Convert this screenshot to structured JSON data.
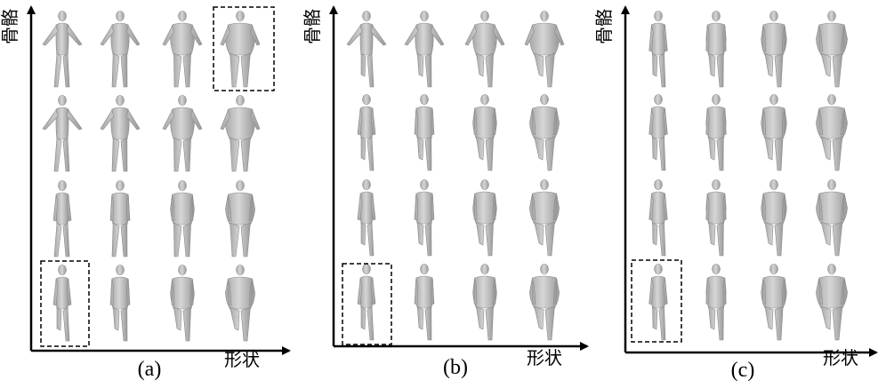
{
  "panels": [
    {
      "label": "(a)",
      "y_axis_label": "骨骼",
      "x_axis_label": "形状"
    },
    {
      "label": "(b)",
      "y_axis_label": "骨骼",
      "x_axis_label": "形状"
    },
    {
      "label": "(c)",
      "y_axis_label": "骨骼",
      "x_axis_label": "形状"
    }
  ]
}
